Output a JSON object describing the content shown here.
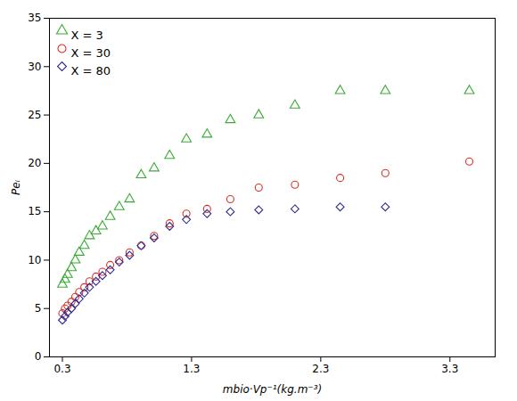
{
  "chart_data": {
    "type": "scatter",
    "x_label": "mbio·Vp⁻¹(kg.m⁻³)",
    "y_label": "Peᵢ",
    "xlim": [
      0.2,
      3.65
    ],
    "ylim": [
      0,
      35
    ],
    "xticks": [
      0.3,
      1.3,
      2.3,
      3.3
    ],
    "yticks": [
      0,
      5,
      10,
      15,
      20,
      25,
      30,
      35
    ],
    "grid": false,
    "legend": "upper left",
    "series": [
      {
        "name": "X = 3",
        "color": "#3aaa35",
        "marker": "triangle",
        "x": [
          0.3,
          0.32,
          0.34,
          0.37,
          0.4,
          0.43,
          0.47,
          0.51,
          0.56,
          0.61,
          0.67,
          0.74,
          0.82,
          0.91,
          1.01,
          1.13,
          1.26,
          1.42,
          1.6,
          1.82,
          2.1,
          2.45,
          2.8,
          3.45
        ],
        "values": [
          7.5,
          8.0,
          8.5,
          9.2,
          10.0,
          10.8,
          11.5,
          12.5,
          13.0,
          13.5,
          14.5,
          15.5,
          16.3,
          18.8,
          19.5,
          20.8,
          22.5,
          23.0,
          24.5,
          25.0,
          26.0,
          27.5,
          27.5,
          27.5
        ]
      },
      {
        "name": "X = 30",
        "color": "#d63028",
        "marker": "circle",
        "x": [
          0.3,
          0.32,
          0.34,
          0.37,
          0.4,
          0.43,
          0.47,
          0.51,
          0.56,
          0.61,
          0.67,
          0.74,
          0.82,
          0.91,
          1.01,
          1.13,
          1.26,
          1.42,
          1.6,
          1.82,
          2.1,
          2.45,
          2.8,
          3.45
        ],
        "values": [
          4.5,
          5.0,
          5.3,
          5.7,
          6.2,
          6.7,
          7.2,
          7.8,
          8.3,
          8.8,
          9.5,
          10.0,
          10.8,
          11.5,
          12.5,
          13.8,
          14.8,
          15.3,
          16.3,
          17.5,
          17.8,
          18.5,
          19.0,
          20.2
        ]
      },
      {
        "name": "X = 80",
        "color": "#2e2b8f",
        "marker": "diamond",
        "x": [
          0.3,
          0.32,
          0.34,
          0.37,
          0.4,
          0.43,
          0.47,
          0.51,
          0.56,
          0.61,
          0.67,
          0.74,
          0.82,
          0.91,
          1.01,
          1.13,
          1.26,
          1.42,
          1.6,
          1.82,
          2.1,
          2.45,
          2.8
        ],
        "values": [
          3.8,
          4.2,
          4.6,
          5.0,
          5.5,
          6.0,
          6.6,
          7.2,
          7.8,
          8.4,
          9.0,
          9.8,
          10.5,
          11.5,
          12.3,
          13.5,
          14.2,
          14.8,
          15.0,
          15.2,
          15.3,
          15.5,
          15.5
        ]
      }
    ]
  }
}
